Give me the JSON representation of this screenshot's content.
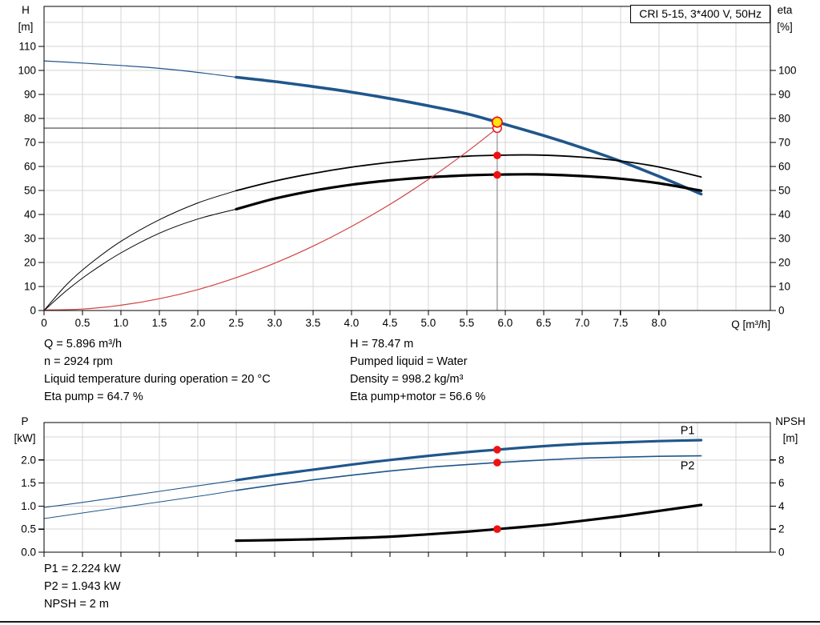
{
  "results_top": {
    "left": [
      "Q = 5.896 m³/h",
      "n = 2924 rpm",
      "Liquid temperature during operation = 20 °C",
      "Eta pump = 64.7 %"
    ],
    "right": [
      "H = 78.47 m",
      "Pumped liquid = Water",
      "Density = 998.2 kg/m³",
      "Eta pump+motor = 56.6 %"
    ]
  },
  "results_bottom": [
    "P1 = 2.224 kW",
    "P2 = 1.943 kW",
    "NPSH = 2 m"
  ],
  "colors": {
    "curve_blue": "#20568b",
    "curve_black": "#000000",
    "system_red": "#cf4444",
    "marker_red": "#ee1111",
    "duty_yellow": "#ffe312",
    "grid_gray": "#d4d4d4",
    "crosshair_gray": "#909090",
    "crosshair_dark": "#404040"
  },
  "chart_data": [
    {
      "type": "line",
      "title": "CRI 5-15, 3*400 V, 50Hz",
      "x_label": "Q [m³/h]",
      "y_left_label": {
        "name": "H",
        "unit": "[m]"
      },
      "y_right_label": {
        "name": "eta",
        "unit": "[%]"
      },
      "x_range": [
        0,
        9.45
      ],
      "y_left_range": [
        0,
        126.7
      ],
      "y_right_range": [
        0,
        126.7
      ],
      "x_ticks": [
        [
          0,
          "0"
        ],
        [
          0.5,
          "0.5"
        ],
        [
          1,
          "1.0"
        ],
        [
          1.5,
          "1.5"
        ],
        [
          2,
          "2.0"
        ],
        [
          2.5,
          "2.5"
        ],
        [
          3,
          "3.0"
        ],
        [
          3.5,
          "3.5"
        ],
        [
          4,
          "4.0"
        ],
        [
          4.5,
          "4.5"
        ],
        [
          5,
          "5.0"
        ],
        [
          5.5,
          "5.5"
        ],
        [
          6,
          "6.0"
        ],
        [
          6.5,
          "6.5"
        ],
        [
          7,
          "7.0"
        ],
        [
          7.5,
          "7.5"
        ],
        [
          8,
          "8.0"
        ]
      ],
      "x_grid": [
        0.5,
        1,
        1.5,
        2,
        2.5,
        3,
        3.5,
        4,
        4.5,
        5,
        5.5,
        6,
        6.5,
        7,
        7.5,
        8,
        8.5,
        9
      ],
      "y_left_ticks": [
        [
          0,
          "0"
        ],
        [
          10,
          "10"
        ],
        [
          20,
          "20"
        ],
        [
          30,
          "30"
        ],
        [
          40,
          "40"
        ],
        [
          50,
          "50"
        ],
        [
          60,
          "60"
        ],
        [
          70,
          "70"
        ],
        [
          80,
          "80"
        ],
        [
          90,
          "90"
        ],
        [
          100,
          "100"
        ],
        [
          110,
          "110"
        ]
      ],
      "y_right_ticks": [
        [
          0,
          "0"
        ],
        [
          10,
          "10"
        ],
        [
          20,
          "20"
        ],
        [
          30,
          "30"
        ],
        [
          40,
          "40"
        ],
        [
          50,
          "50"
        ],
        [
          60,
          "60"
        ],
        [
          70,
          "70"
        ],
        [
          80,
          "80"
        ],
        [
          90,
          "90"
        ],
        [
          100,
          "100"
        ]
      ],
      "y_grid": [
        10,
        20,
        30,
        40,
        50,
        60,
        70,
        80,
        90,
        100,
        110,
        120
      ],
      "crosshair": {
        "q": 5.896,
        "h_req": 76,
        "h_duty": 78.47
      },
      "duty_point": {
        "q": 5.896,
        "h": 78.47,
        "eta_pump": 64.7,
        "eta_pump_motor": 56.6
      },
      "series": [
        {
          "name": "head-extrapolated",
          "axis": "left",
          "color": "#20568b",
          "width": 1.2,
          "points": [
            [
              0,
              104
            ],
            [
              0.5,
              103.1
            ],
            [
              1,
              102.1
            ],
            [
              1.5,
              100.9
            ],
            [
              2,
              99.2
            ],
            [
              2.5,
              97.2
            ]
          ]
        },
        {
          "name": "head",
          "axis": "left",
          "color": "#20568b",
          "width": 3.6,
          "points": [
            [
              2.5,
              97.2
            ],
            [
              3,
              95.4
            ],
            [
              3.5,
              93.3
            ],
            [
              4,
              91.0
            ],
            [
              4.5,
              88.3
            ],
            [
              5,
              85.3
            ],
            [
              5.5,
              82.0
            ],
            [
              5.896,
              78.5
            ],
            [
              6.5,
              72.9
            ],
            [
              7,
              67.8
            ],
            [
              7.5,
              62.2
            ],
            [
              8,
              55.9
            ],
            [
              8.55,
              48.5
            ]
          ]
        },
        {
          "name": "eta-pump-extrapolated",
          "axis": "right",
          "color": "#000000",
          "width": 1,
          "points": [
            [
              0,
              0
            ],
            [
              0.3,
              11
            ],
            [
              0.6,
              19.5
            ],
            [
              1,
              28.8
            ],
            [
              1.5,
              37.8
            ],
            [
              2,
              44.8
            ],
            [
              2.5,
              49.9
            ]
          ]
        },
        {
          "name": "eta-pump",
          "axis": "right",
          "color": "#000000",
          "width": 1.8,
          "points": [
            [
              2.5,
              49.9
            ],
            [
              3,
              53.9
            ],
            [
              3.5,
              57.1
            ],
            [
              4,
              59.7
            ],
            [
              4.5,
              61.7
            ],
            [
              5,
              63.2
            ],
            [
              5.5,
              64.3
            ],
            [
              5.9,
              64.7
            ],
            [
              6.4,
              64.8
            ],
            [
              7,
              63.9
            ],
            [
              7.5,
              62.3
            ],
            [
              8,
              59.8
            ],
            [
              8.55,
              55.6
            ]
          ]
        },
        {
          "name": "eta-pump-motor-extrapolated",
          "axis": "right",
          "color": "#000000",
          "width": 1,
          "points": [
            [
              0,
              0
            ],
            [
              0.3,
              8.5
            ],
            [
              0.6,
              15.8
            ],
            [
              1,
              24.0
            ],
            [
              1.5,
              32.2
            ],
            [
              2,
              38.1
            ],
            [
              2.5,
              42.2
            ]
          ]
        },
        {
          "name": "eta-pump-motor",
          "axis": "right",
          "color": "#000000",
          "width": 3.2,
          "points": [
            [
              2.5,
              42.2
            ],
            [
              3,
              46.6
            ],
            [
              3.5,
              49.9
            ],
            [
              4,
              52.4
            ],
            [
              4.5,
              54.2
            ],
            [
              5,
              55.5
            ],
            [
              5.5,
              56.3
            ],
            [
              5.9,
              56.6
            ],
            [
              6.4,
              56.7
            ],
            [
              7,
              56.0
            ],
            [
              7.5,
              54.9
            ],
            [
              8,
              53.0
            ],
            [
              8.55,
              49.9
            ]
          ]
        },
        {
          "name": "system-curve",
          "axis": "left",
          "color": "#cf4444",
          "width": 1.2,
          "points": [
            [
              0,
              0.2
            ],
            [
              0.5,
              0.6
            ],
            [
              1,
              2.2
            ],
            [
              1.5,
              4.9
            ],
            [
              2,
              8.7
            ],
            [
              2.5,
              13.7
            ],
            [
              3,
              19.7
            ],
            [
              3.5,
              26.8
            ],
            [
              4,
              35.0
            ],
            [
              4.5,
              44.2
            ],
            [
              5,
              54.6
            ],
            [
              5.5,
              66.1
            ],
            [
              5.896,
              76.0
            ]
          ]
        }
      ],
      "markers": [
        {
          "name": "requested-duty-point",
          "x": 5.896,
          "y": 76.0,
          "axis": "left",
          "r": 5.3,
          "fill": "#ffffff",
          "stroke": "#ee1111",
          "sw": 1.5
        },
        {
          "name": "duty-point",
          "x": 5.896,
          "y": 78.47,
          "axis": "left",
          "r": 6.2,
          "fill": "#ffe312",
          "stroke": "#ee1111",
          "sw": 1.7
        },
        {
          "name": "eta-pump-point",
          "x": 5.896,
          "y": 64.6,
          "axis": "right",
          "r": 4.8,
          "fill": "#ee1111"
        },
        {
          "name": "eta-pump-motor-point",
          "x": 5.896,
          "y": 56.5,
          "axis": "right",
          "r": 4.8,
          "fill": "#ee1111"
        }
      ],
      "annotations": []
    },
    {
      "type": "line",
      "title": "",
      "x_label": "",
      "y_left_label": {
        "name": "P",
        "unit": "[kW]"
      },
      "y_right_label": {
        "name": "NPSH",
        "unit": "[m]"
      },
      "x_range": [
        0,
        9.45
      ],
      "y_left_range": [
        0,
        2.8125
      ],
      "y_right_range": [
        0,
        11.25
      ],
      "x_ticks": [
        [
          0,
          ""
        ],
        [
          0.5,
          ""
        ],
        [
          1,
          ""
        ],
        [
          1.5,
          ""
        ],
        [
          2,
          ""
        ],
        [
          2.5,
          ""
        ],
        [
          3,
          ""
        ],
        [
          3.5,
          ""
        ],
        [
          4,
          ""
        ],
        [
          4.5,
          ""
        ],
        [
          5,
          ""
        ],
        [
          5.5,
          ""
        ],
        [
          6,
          ""
        ],
        [
          6.5,
          ""
        ],
        [
          7,
          ""
        ],
        [
          7.5,
          ""
        ],
        [
          8,
          ""
        ]
      ],
      "x_grid": [
        0.5,
        1,
        1.5,
        2,
        2.5,
        3,
        3.5,
        4,
        4.5,
        5,
        5.5,
        6,
        6.5,
        7,
        7.5,
        8,
        8.5,
        9
      ],
      "y_left_ticks": [
        [
          0,
          "0.0"
        ],
        [
          0.5,
          "0.5"
        ],
        [
          1,
          "1.0"
        ],
        [
          1.5,
          "1.5"
        ],
        [
          2,
          "2.0"
        ]
      ],
      "y_right_ticks": [
        [
          0,
          "0"
        ],
        [
          2,
          "2"
        ],
        [
          4,
          "4"
        ],
        [
          6,
          "6"
        ],
        [
          8,
          "8"
        ]
      ],
      "y_grid": [
        0.5,
        1,
        1.5,
        2,
        2.5
      ],
      "duty_point": {
        "q": 5.896,
        "p1": 2.224,
        "p2": 1.943,
        "npsh": 2
      },
      "series": [
        {
          "name": "p1-extrapolated",
          "axis": "left",
          "color": "#20568b",
          "width": 1.1,
          "points": [
            [
              0,
              0.97
            ],
            [
              0.5,
              1.08
            ],
            [
              1,
              1.2
            ],
            [
              1.5,
              1.32
            ],
            [
              2,
              1.44
            ],
            [
              2.5,
              1.56
            ]
          ]
        },
        {
          "name": "p1",
          "axis": "left",
          "color": "#20568b",
          "width": 3.2,
          "points": [
            [
              2.5,
              1.56
            ],
            [
              3,
              1.68
            ],
            [
              3.5,
              1.79
            ],
            [
              4,
              1.9
            ],
            [
              4.5,
              2.0
            ],
            [
              5,
              2.09
            ],
            [
              5.5,
              2.17
            ],
            [
              5.896,
              2.224
            ],
            [
              6.5,
              2.3
            ],
            [
              7,
              2.35
            ],
            [
              7.5,
              2.38
            ],
            [
              8,
              2.41
            ],
            [
              8.55,
              2.43
            ]
          ]
        },
        {
          "name": "p2-extrapolated",
          "axis": "left",
          "color": "#20568b",
          "width": 1,
          "points": [
            [
              0,
              0.73
            ],
            [
              0.5,
              0.85
            ],
            [
              1,
              0.97
            ],
            [
              1.5,
              1.09
            ],
            [
              2,
              1.21
            ],
            [
              2.5,
              1.34
            ]
          ]
        },
        {
          "name": "p2",
          "axis": "left",
          "color": "#20568b",
          "width": 1.6,
          "points": [
            [
              2.5,
              1.34
            ],
            [
              3,
              1.46
            ],
            [
              3.5,
              1.57
            ],
            [
              4,
              1.67
            ],
            [
              4.5,
              1.76
            ],
            [
              5,
              1.84
            ],
            [
              5.5,
              1.9
            ],
            [
              5.896,
              1.943
            ],
            [
              6.5,
              2.0
            ],
            [
              7,
              2.04
            ],
            [
              7.5,
              2.06
            ],
            [
              8,
              2.08
            ],
            [
              8.55,
              2.09
            ]
          ]
        },
        {
          "name": "npsh",
          "axis": "right",
          "color": "#000000",
          "width": 3.2,
          "points": [
            [
              2.5,
              1.0
            ],
            [
              3,
              1.05
            ],
            [
              3.5,
              1.12
            ],
            [
              4,
              1.22
            ],
            [
              4.5,
              1.35
            ],
            [
              5,
              1.55
            ],
            [
              5.5,
              1.78
            ],
            [
              5.896,
              2.0
            ],
            [
              6.5,
              2.35
            ],
            [
              7,
              2.72
            ],
            [
              7.5,
              3.12
            ],
            [
              8,
              3.58
            ],
            [
              8.55,
              4.1
            ]
          ]
        }
      ],
      "markers": [
        {
          "name": "p1-point",
          "x": 5.896,
          "y": 2.224,
          "axis": "left",
          "r": 4.8,
          "fill": "#ee1111"
        },
        {
          "name": "p2-point",
          "x": 5.896,
          "y": 1.943,
          "axis": "left",
          "r": 4.8,
          "fill": "#ee1111"
        },
        {
          "name": "npsh-point",
          "x": 5.896,
          "y": 2.0,
          "axis": "right",
          "r": 4.8,
          "fill": "#ee1111"
        }
      ],
      "annotations": [
        {
          "text": "P1",
          "x": 8.28,
          "y": 2.56,
          "axis": "left",
          "color": "#20568b"
        },
        {
          "text": "P2",
          "x": 8.28,
          "y": 1.8,
          "axis": "left",
          "color": "#20568b"
        }
      ]
    }
  ]
}
